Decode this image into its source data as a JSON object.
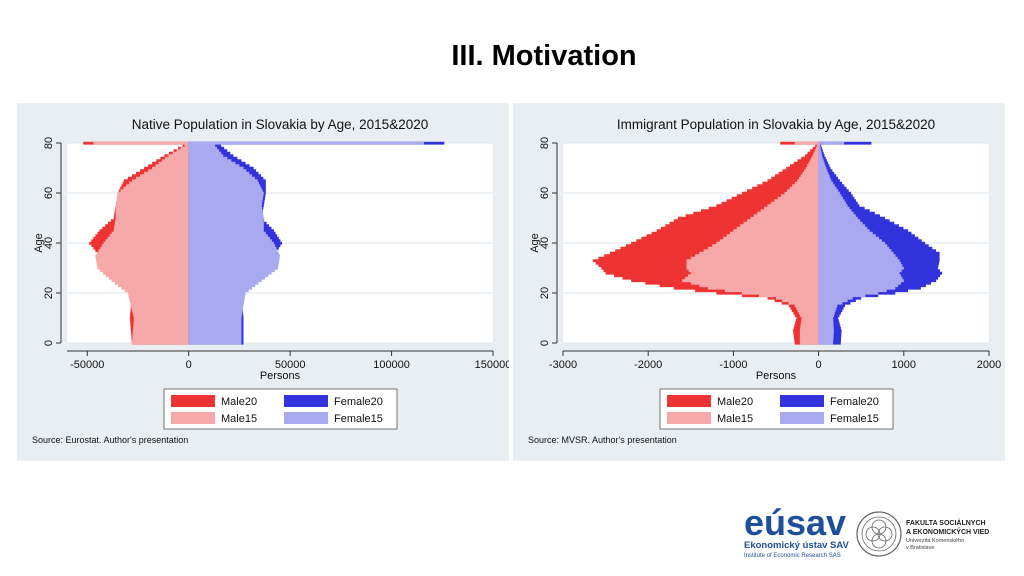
{
  "slide": {
    "title": "III. Motivation"
  },
  "colors": {
    "panel_bg": "#e8eef2",
    "plot_bg": "#ffffff",
    "male20": "#ee3333",
    "male15": "#f7a9a9",
    "female20": "#3333dd",
    "female15": "#a9a9f0",
    "grid": "#dde5ea"
  },
  "logos": {
    "esav_main": "eúsav",
    "esav_sub1": "Ekonomický ústav SAV",
    "esav_sub2": "Institute of Economic Research SAS",
    "fsev_line1": "FAKULTA SOCIÁLNYCH",
    "fsev_line2": "A EKONOMICKÝCH VIED",
    "fsev_line3": "Univerzita Komenského",
    "fsev_line4": "v Bratislave"
  },
  "chart_data": [
    {
      "type": "bar",
      "orientation": "horizontal",
      "title": "Native Population in Slovakia by Age, 2015&2020",
      "xlabel": "Persons",
      "ylabel": "Age",
      "xlim": [
        -60000,
        150000
      ],
      "ylim": [
        0,
        80
      ],
      "xticks": [
        -50000,
        0,
        50000,
        100000,
        150000
      ],
      "xtick_labels": [
        "-50000",
        "0",
        "50000",
        "100000",
        "150000"
      ],
      "yticks": [
        0,
        20,
        40,
        60,
        80
      ],
      "ytick_labels": [
        "0",
        "20",
        "40",
        "60",
        "80"
      ],
      "grid": true,
      "legend": {
        "position": "bottom",
        "entries": [
          "Male20",
          "Female20",
          "Male15",
          "Female15"
        ]
      },
      "source": "Source: Eurostat. Author's presentation",
      "ages": [
        0,
        10,
        20,
        25,
        30,
        35,
        40,
        45,
        50,
        55,
        60,
        65,
        70,
        75,
        79,
        80
      ],
      "series": [
        {
          "name": "Male20",
          "side": "left",
          "values": [
            -28000,
            -29000,
            -28000,
            -34000,
            -41000,
            -44000,
            -49000,
            -44000,
            -37000,
            -36000,
            -35000,
            -32000,
            -22000,
            -12000,
            -3000,
            -52000
          ]
        },
        {
          "name": "Male15",
          "side": "left",
          "values": [
            -28000,
            -27000,
            -30000,
            -38000,
            -45000,
            -46000,
            -42000,
            -37000,
            -36000,
            -36000,
            -35000,
            -28000,
            -18000,
            -10000,
            -2000,
            -47000
          ]
        },
        {
          "name": "Female20",
          "side": "right",
          "values": [
            27000,
            27000,
            26000,
            32000,
            39000,
            42000,
            46000,
            42000,
            36000,
            37000,
            38000,
            38000,
            32000,
            22000,
            16000,
            126000
          ]
        },
        {
          "name": "Female15",
          "side": "right",
          "values": [
            26000,
            26000,
            28000,
            36000,
            44000,
            45000,
            42000,
            37000,
            37000,
            36000,
            37000,
            34000,
            27000,
            17000,
            13000,
            116000
          ]
        }
      ]
    },
    {
      "type": "bar",
      "orientation": "horizontal",
      "title": "Immigrant Population in Slovakia by Age, 2015&2020",
      "xlabel": "Persons",
      "ylabel": "Age",
      "xlim": [
        -3000,
        2000
      ],
      "ylim": [
        0,
        80
      ],
      "xticks": [
        -3000,
        -2000,
        -1000,
        0,
        1000,
        2000
      ],
      "xtick_labels": [
        "-3000",
        "-2000",
        "-1000",
        "0",
        "1000",
        "2000"
      ],
      "yticks": [
        0,
        20,
        40,
        60,
        80
      ],
      "ytick_labels": [
        "0",
        "20",
        "40",
        "60",
        "80"
      ],
      "grid": true,
      "legend": {
        "position": "bottom",
        "entries": [
          "Male20",
          "Female20",
          "Male15",
          "Female15"
        ]
      },
      "source": "Source: MVSR. Author's presentation",
      "ages": [
        0,
        5,
        10,
        15,
        18,
        20,
        22,
        25,
        28,
        30,
        33,
        36,
        40,
        45,
        50,
        55,
        60,
        65,
        70,
        75,
        79,
        80
      ],
      "series": [
        {
          "name": "Male20",
          "side": "left",
          "values": [
            -280,
            -300,
            -260,
            -350,
            -600,
            -1200,
            -1700,
            -2200,
            -2500,
            -2550,
            -2650,
            -2450,
            -2200,
            -1900,
            -1650,
            -1200,
            -900,
            -600,
            -380,
            -160,
            -40,
            -450
          ]
        },
        {
          "name": "Male15",
          "side": "left",
          "values": [
            -220,
            -220,
            -200,
            -280,
            -500,
            -900,
            -1300,
            -1600,
            -1500,
            -1550,
            -1550,
            -1400,
            -1200,
            -1000,
            -800,
            -600,
            -400,
            -250,
            -150,
            -70,
            -20,
            -280
          ]
        },
        {
          "name": "Female20",
          "side": "right",
          "values": [
            260,
            270,
            230,
            310,
            500,
            900,
            1200,
            1380,
            1450,
            1400,
            1420,
            1420,
            1250,
            1050,
            780,
            480,
            380,
            250,
            140,
            70,
            30,
            620
          ]
        },
        {
          "name": "Female15",
          "side": "right",
          "values": [
            170,
            180,
            170,
            220,
            400,
            700,
            900,
            1000,
            950,
            1000,
            950,
            880,
            780,
            600,
            460,
            340,
            250,
            150,
            90,
            40,
            20,
            300
          ]
        }
      ]
    }
  ]
}
